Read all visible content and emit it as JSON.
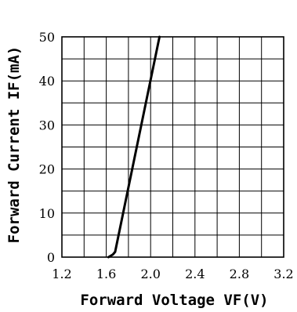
{
  "chart_data": {
    "type": "line",
    "xlabel": "Forward Voltage VF(V)",
    "ylabel": "Forward Current IF(mA)",
    "xlim": [
      1.2,
      3.2
    ],
    "ylim": [
      0,
      50
    ],
    "x_ticks": [
      "1.2",
      "1.6",
      "2.0",
      "2.4",
      "2.8",
      "3.2"
    ],
    "y_ticks": [
      "0",
      "10",
      "20",
      "30",
      "40",
      "50"
    ],
    "x_minor_step": 0.2,
    "y_minor_step": 5,
    "grid": true,
    "line_color": "#000000",
    "grid_color": "#000000",
    "series": [
      {
        "x": [
          1.62,
          1.66,
          1.68,
          2.08
        ],
        "y": [
          0,
          0.6,
          1.2,
          50
        ]
      }
    ]
  }
}
